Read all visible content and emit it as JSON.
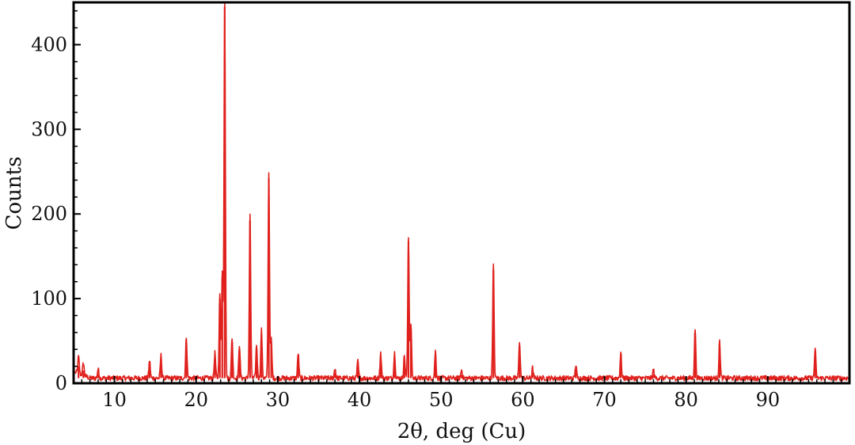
{
  "chart_data": {
    "type": "line",
    "xlabel": "2θ, deg (Cu)",
    "ylabel": "Counts",
    "xlim": [
      5,
      100
    ],
    "ylim": [
      0,
      450
    ],
    "x_ticks": [
      10,
      20,
      30,
      40,
      50,
      60,
      70,
      80,
      90
    ],
    "x_tick_labels": [
      "10",
      "20",
      "30",
      "40",
      "50",
      "60",
      "70",
      "80",
      "90"
    ],
    "y_ticks": [
      0,
      100,
      200,
      300,
      400
    ],
    "y_tick_labels": [
      "0",
      "100",
      "200",
      "300",
      "400"
    ],
    "grid": false,
    "series": [
      {
        "color": "#e0201c",
        "baseline": 6,
        "peaks": [
          {
            "x": 5.6,
            "y": 20
          },
          {
            "x": 6.2,
            "y": 15
          },
          {
            "x": 8.0,
            "y": 11
          },
          {
            "x": 14.3,
            "y": 21
          },
          {
            "x": 15.7,
            "y": 27
          },
          {
            "x": 18.8,
            "y": 49
          },
          {
            "x": 22.3,
            "y": 30
          },
          {
            "x": 22.9,
            "y": 100
          },
          {
            "x": 23.2,
            "y": 125
          },
          {
            "x": 23.5,
            "y": 445
          },
          {
            "x": 24.4,
            "y": 48
          },
          {
            "x": 25.3,
            "y": 40
          },
          {
            "x": 26.6,
            "y": 192
          },
          {
            "x": 27.4,
            "y": 40
          },
          {
            "x": 28.0,
            "y": 57
          },
          {
            "x": 28.9,
            "y": 242
          },
          {
            "x": 29.2,
            "y": 46
          },
          {
            "x": 32.5,
            "y": 30
          },
          {
            "x": 37.0,
            "y": 12
          },
          {
            "x": 39.8,
            "y": 20
          },
          {
            "x": 42.6,
            "y": 30
          },
          {
            "x": 44.3,
            "y": 30
          },
          {
            "x": 45.5,
            "y": 27
          },
          {
            "x": 46.0,
            "y": 168
          },
          {
            "x": 46.3,
            "y": 65
          },
          {
            "x": 49.3,
            "y": 32
          },
          {
            "x": 52.5,
            "y": 10
          },
          {
            "x": 56.4,
            "y": 134
          },
          {
            "x": 59.6,
            "y": 44
          },
          {
            "x": 61.2,
            "y": 12
          },
          {
            "x": 66.5,
            "y": 16
          },
          {
            "x": 72.0,
            "y": 30
          },
          {
            "x": 76.0,
            "y": 10
          },
          {
            "x": 81.1,
            "y": 59
          },
          {
            "x": 84.1,
            "y": 44
          },
          {
            "x": 95.8,
            "y": 35
          }
        ]
      }
    ]
  }
}
